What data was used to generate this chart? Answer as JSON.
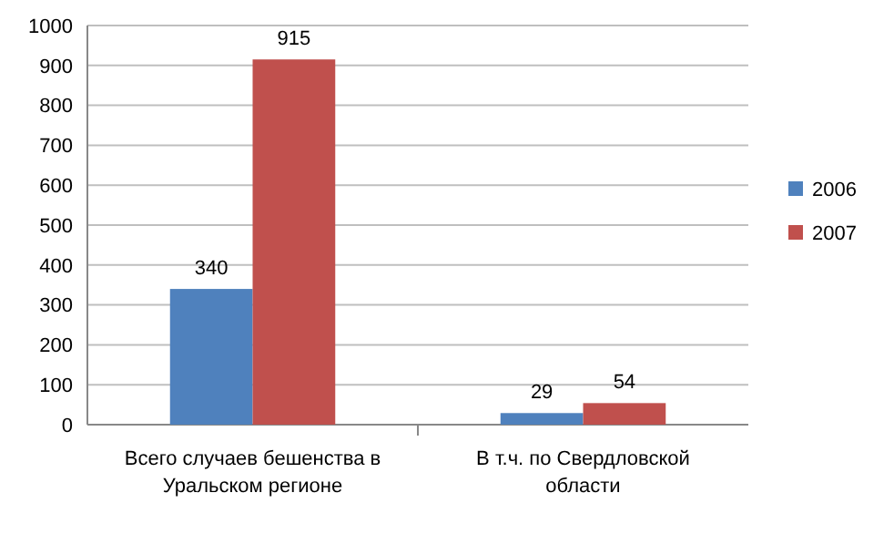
{
  "chart_data": {
    "type": "bar",
    "categories": [
      "Всего случаев бешенства в Уральском регионе",
      "В т.ч. по Свердловской области"
    ],
    "series": [
      {
        "name": "2006",
        "color": "#4f81bd",
        "values": [
          340,
          29
        ]
      },
      {
        "name": "2007",
        "color": "#c0504d",
        "values": [
          915,
          54
        ]
      }
    ],
    "ylim": [
      0,
      1000
    ],
    "yticks": [
      0,
      100,
      200,
      300,
      400,
      500,
      600,
      700,
      800,
      900,
      1000
    ],
    "grid": "y",
    "legend": "right",
    "data_labels": true
  }
}
